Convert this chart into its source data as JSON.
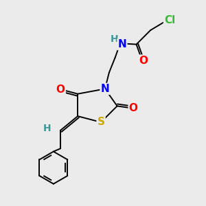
{
  "background_color": "#ebebeb",
  "fig_size": [
    3.0,
    3.0
  ],
  "dpi": 100,
  "xlim": [
    0,
    10
  ],
  "ylim": [
    0,
    10
  ],
  "colors": {
    "black": "#000000",
    "red": "#ff0000",
    "blue": "#0000ff",
    "teal": "#3d9999",
    "green": "#33bb33",
    "yellow": "#ccaa00"
  },
  "lw": 1.4,
  "fontsize": 11
}
